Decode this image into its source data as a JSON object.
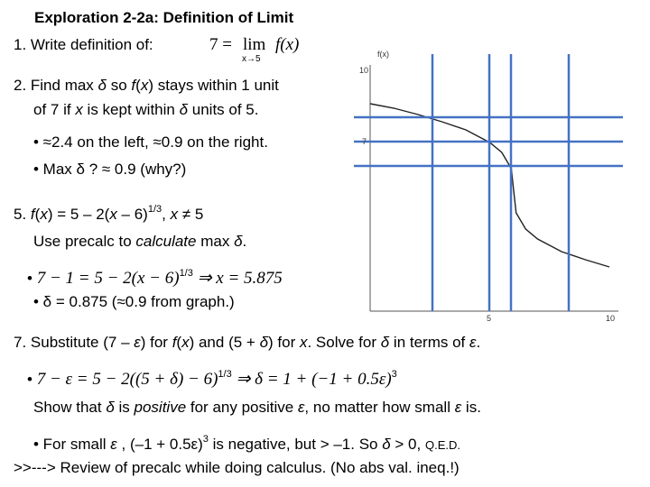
{
  "title": "Exploration 2-2a: Definition of Limit",
  "definition": {
    "label": "1. Write definition of:",
    "lhs": "7 =",
    "lim": "lim",
    "sub": "x→5",
    "fx": "f(x)"
  },
  "lines": [
    [
      {
        "text": "2. Find max "
      },
      {
        "text": "δ",
        "style": "italic"
      },
      {
        "text": " so "
      },
      {
        "text": "f",
        "style": "italic"
      },
      {
        "text": "("
      },
      {
        "text": "x",
        "style": "italic"
      },
      {
        "text": ") stays within 1 unit"
      }
    ],
    [
      {
        "text": "of 7 if "
      },
      {
        "text": "x",
        "style": "italic"
      },
      {
        "text": " is kept within "
      },
      {
        "text": "δ",
        "style": "italic"
      },
      {
        "text": " units of 5."
      }
    ],
    [
      {
        "text": "• ≈2.4 on the left,  ≈0.9 on the right."
      }
    ],
    [
      {
        "text": "• Max δ ?    ≈ 0.9 (why?)"
      }
    ],
    [
      {
        "text": "5. "
      },
      {
        "text": "f",
        "style": "italic"
      },
      {
        "text": "("
      },
      {
        "text": "x",
        "style": "italic"
      },
      {
        "text": ") = 5 – 2("
      },
      {
        "text": "x",
        "style": "italic"
      },
      {
        "text": " – 6)"
      },
      {
        "text": "1/3",
        "style": "sup"
      },
      {
        "text": ",   "
      },
      {
        "text": "x",
        "style": "italic"
      },
      {
        "text": " ≠ 5"
      }
    ],
    [
      {
        "text": "Use precalc to "
      },
      {
        "text": "calculate",
        "style": "italic"
      },
      {
        "text": " max "
      },
      {
        "text": "δ",
        "style": "italic"
      },
      {
        "text": "."
      }
    ],
    [
      {
        "text": "• "
      },
      {
        "text": "7 − 1 = 5 − 2(x − 6)",
        "style": "math"
      },
      {
        "text": "1/3",
        "style": "sup"
      },
      {
        "text": "  ⇒ x = 5.875",
        "style": "math"
      }
    ],
    [
      {
        "text": "• δ = 0.875  (≈0.9 from graph.)"
      }
    ],
    [
      {
        "text": "7. Substitute (7 – "
      },
      {
        "text": "ε",
        "style": "italic"
      },
      {
        "text": ") for "
      },
      {
        "text": "f",
        "style": "italic"
      },
      {
        "text": "("
      },
      {
        "text": "x",
        "style": "italic"
      },
      {
        "text": ") and (5 + "
      },
      {
        "text": "δ",
        "style": "italic"
      },
      {
        "text": ") for "
      },
      {
        "text": "x",
        "style": "italic"
      },
      {
        "text": ".   Solve for "
      },
      {
        "text": "δ",
        "style": "italic"
      },
      {
        "text": " in terms of "
      },
      {
        "text": "ε",
        "style": "italic"
      },
      {
        "text": "."
      }
    ],
    [
      {
        "text": "• "
      },
      {
        "text": "7 − ε = 5 − 2((5 + δ) − 6)",
        "style": "math"
      },
      {
        "text": "1/3",
        "style": "sup"
      },
      {
        "text": "   ⇒ δ = 1 + (−1 + 0.5ε)",
        "style": "math"
      },
      {
        "text": "3",
        "style": "sup"
      }
    ],
    [
      {
        "text": "Show that "
      },
      {
        "text": "δ",
        "style": "italic"
      },
      {
        "text": " is "
      },
      {
        "text": "positive",
        "style": "italic"
      },
      {
        "text": " for any positive "
      },
      {
        "text": "ε",
        "style": "italic"
      },
      {
        "text": ", no matter how small "
      },
      {
        "text": "ε",
        "style": "italic"
      },
      {
        "text": " is."
      }
    ],
    [
      {
        "text": "• For small "
      },
      {
        "text": "ε",
        "style": "italic"
      },
      {
        "text": " , (–1 + 0.5ε)"
      },
      {
        "text": "3",
        "style": "sup"
      },
      {
        "text": " is negative, but > –1.   So  "
      },
      {
        "text": "δ",
        "style": "italic"
      },
      {
        "text": " > 0, "
      },
      {
        "text": "Q.E.D.",
        "style": "small"
      }
    ],
    [
      {
        "text": ">>---> Review of precalc while doing calculus.  (No abs val. ineq.!)"
      }
    ]
  ],
  "graph": {
    "y_label": "f(x)",
    "y_top": "10",
    "y_seven": "7",
    "x_five": "5",
    "x_ten": "10"
  }
}
